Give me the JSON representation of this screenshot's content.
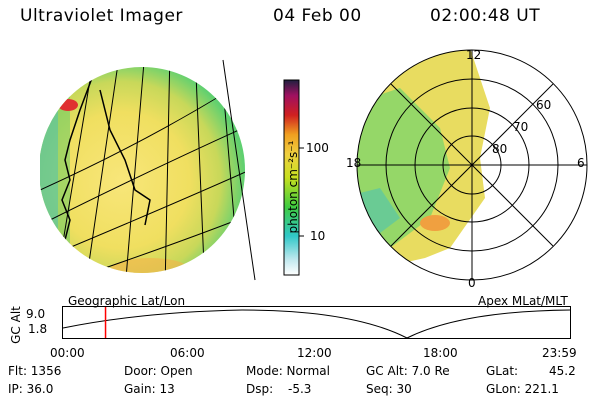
{
  "header": {
    "title": "Ultraviolet Imager",
    "date": "04 Feb 00",
    "time": "02:00:48 UT"
  },
  "colorbar": {
    "label": "photon cm⁻²s⁻¹",
    "tick_high": "100",
    "tick_low": "10"
  },
  "geo_panel": {
    "caption": "Geographic Lat/Lon"
  },
  "polar_panel": {
    "caption": "Apex MLat/MLT",
    "mlt_12": "12",
    "mlt_18": "18",
    "mlt_6": "6",
    "mlt_0": "0",
    "lat_60": "60",
    "lat_70": "70",
    "lat_80": "80"
  },
  "altitude_plot": {
    "ylabel": "GC Alt",
    "y_high": "9.0",
    "y_low": "1.8",
    "x_ticks": [
      "00:00",
      "06:00",
      "12:00",
      "18:00",
      "23:59"
    ],
    "cursor_time_fraction": 0.0839
  },
  "info": {
    "flt": "Flt: 1356",
    "ip": "IP: 36.0",
    "door": "Door: Open",
    "gain": "Gain: 13",
    "mode": "Mode: Normal",
    "dsp": "Dsp:",
    "dsp_val": "-5.3",
    "gcalt": "GC Alt: 7.0 Re",
    "seq": "Seq: 30",
    "glat": "GLat:",
    "glat_val": "45.2",
    "glon": "GLon: 221.1"
  },
  "colors": {
    "accent": "#ff0000"
  }
}
